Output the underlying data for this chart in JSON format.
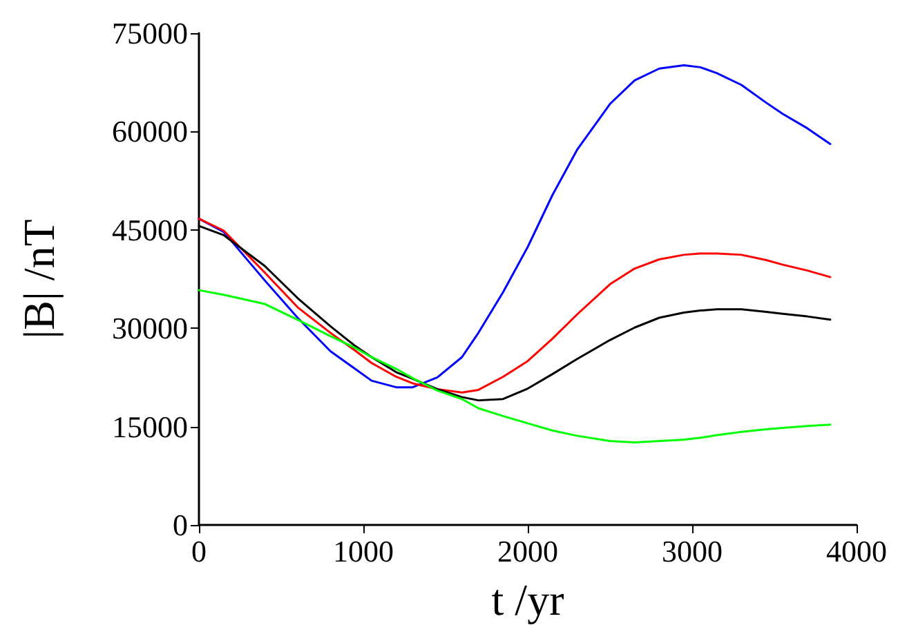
{
  "chart_data": {
    "type": "line",
    "xlabel": "t /yr",
    "ylabel": "|B| /nT",
    "xlim": [
      0,
      4000
    ],
    "xticks": [
      0,
      1000,
      2000,
      3000,
      4000
    ],
    "ylim": [
      0,
      75000
    ],
    "yticks": [
      0,
      15000,
      30000,
      45000,
      60000,
      75000
    ],
    "grid": false,
    "marker": "none",
    "line_style": "solid",
    "x": [
      0,
      150,
      400,
      600,
      800,
      950,
      1050,
      1200,
      1300,
      1450,
      1600,
      1700,
      1850,
      2000,
      2150,
      2300,
      2500,
      2650,
      2800,
      2950,
      3050,
      3150,
      3300,
      3450,
      3550,
      3700,
      3840
    ],
    "series": [
      {
        "color": "#0000ff",
        "values": [
          46700,
          44700,
          37300,
          31600,
          26500,
          23800,
          22000,
          21000,
          21000,
          22500,
          25600,
          29300,
          35500,
          42400,
          50300,
          57200,
          64200,
          67800,
          69600,
          70100,
          69800,
          68900,
          67100,
          64400,
          62700,
          60500,
          58100
        ]
      },
      {
        "color": "#ff0000",
        "values": [
          46700,
          44900,
          38500,
          33200,
          29300,
          26600,
          24700,
          22600,
          21600,
          20700,
          20200,
          20600,
          22600,
          25000,
          28400,
          32100,
          36700,
          39100,
          40500,
          41200,
          41400,
          41400,
          41200,
          40400,
          39700,
          38800,
          37800
        ]
      },
      {
        "color": "#000000",
        "values": [
          45600,
          44200,
          39500,
          34600,
          30300,
          27300,
          25600,
          23300,
          22300,
          20700,
          19500,
          19000,
          19200,
          20800,
          23000,
          25300,
          28200,
          30100,
          31600,
          32400,
          32700,
          32900,
          32900,
          32500,
          32200,
          31800,
          31300
        ]
      },
      {
        "color": "#00ff00",
        "values": [
          35800,
          35100,
          33700,
          31300,
          28800,
          27000,
          25600,
          23800,
          22400,
          20500,
          19200,
          17800,
          16600,
          15500,
          14400,
          13600,
          12800,
          12600,
          12800,
          13000,
          13300,
          13700,
          14200,
          14600,
          14800,
          15100,
          15300
        ]
      }
    ]
  }
}
